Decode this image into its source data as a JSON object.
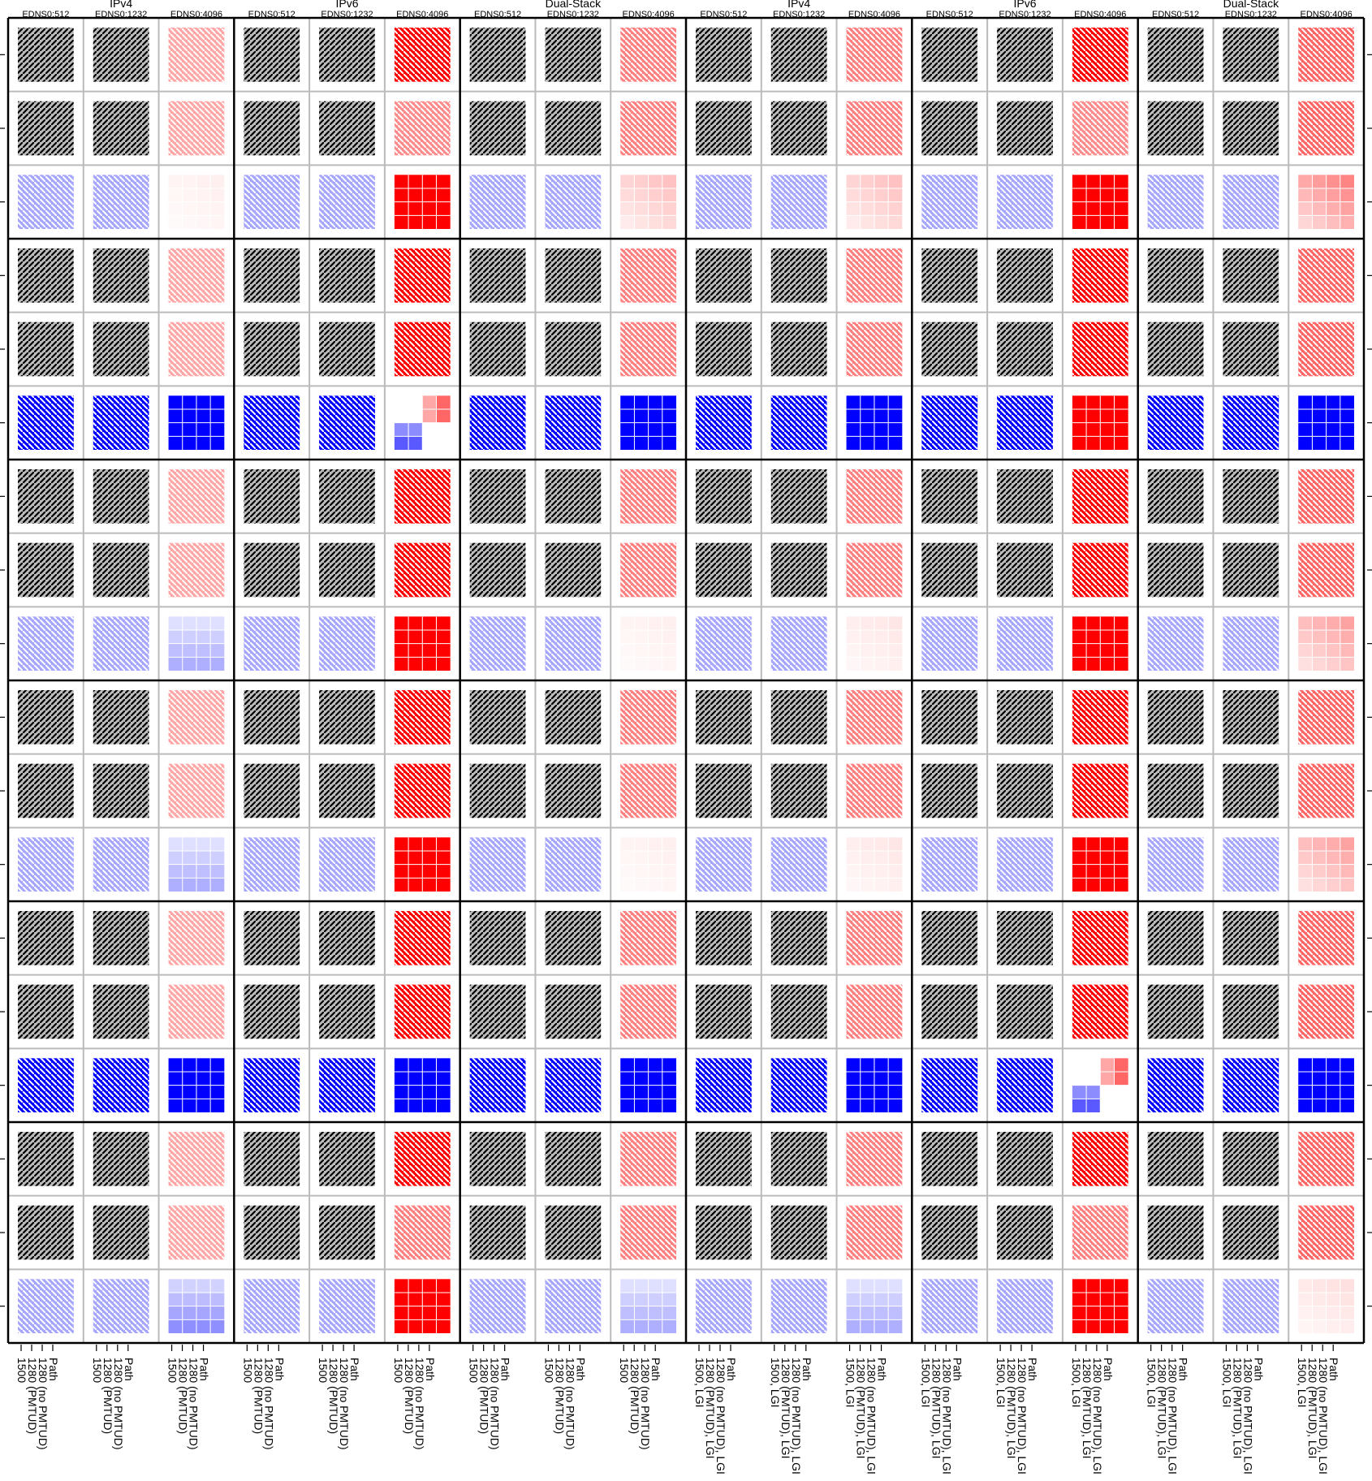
{
  "colors": {
    "failure": "#ff0000",
    "success": "#0000ff",
    "neutral": "#bbbbbb",
    "hatch_dark": "#000000",
    "hatch_light": "#ffffff",
    "cell_border": "#bbbbbb",
    "block_border": "#000000"
  },
  "chart_data": {
    "type": "heatmap",
    "title": "",
    "xlabel": "",
    "ylabel": "",
    "column_groups": [
      "IPv4",
      "IPv6",
      "Dual-Stack",
      "IPv4",
      "IPv6",
      "Dual-Stack"
    ],
    "sub_columns": [
      "EDNS0:512",
      "EDNS0:1232",
      "EDNS0:4096"
    ],
    "path_labels": [
      [
        "1500",
        "1280 (PMTUD)",
        "1280 (no PMTUD)",
        "Path"
      ],
      [
        "1500, LGI",
        "1280 (PMTUD), LGI",
        "1280 (no PMTUD), LGI",
        "Path"
      ]
    ],
    "row_blocks": 6,
    "rows_per_block": 3,
    "mini_grid": [
      4,
      4
    ],
    "cell_kind_legend": {
      "N": "neutral (hatched grey)",
      "Bh": "success, hatched",
      "Rh": "failure, hatched",
      "B": "success, solid",
      "R": "failure, solid",
      "Bgrad": "success fraction varies across mini-grid",
      "Rgrad": "failure fraction varies across mini-grid",
      "mixBR": "mixed success / failure"
    },
    "cells": [
      [
        [
          "N",
          "N",
          "Rh0.35"
        ],
        [
          "N",
          "N",
          "Rh1"
        ],
        [
          "N",
          "N",
          "Rh0.5"
        ],
        [
          "N",
          "N",
          "Rh0.5"
        ],
        [
          "N",
          "N",
          "Rh1"
        ],
        [
          "N",
          "N",
          "Rh0.6"
        ],
        [
          "N",
          "N",
          "Rh0.35"
        ],
        [
          "N",
          "N",
          "Rh0.45"
        ],
        [
          "N",
          "N",
          "Rh0.5"
        ],
        [
          "N",
          "N",
          "Rh0.5"
        ],
        [
          "N",
          "N",
          "Rh0.45"
        ],
        [
          "N",
          "N",
          "Rh0.6"
        ],
        [
          "Bh0.35",
          "Bh0.35",
          "Rgrad0.05"
        ],
        [
          "Bh0.35",
          "Bh0.35",
          "R1"
        ],
        [
          "Bh0.35",
          "Bh0.35",
          "Rgrad0.2"
        ],
        [
          "Bh0.35",
          "Bh0.35",
          "Rgrad0.2"
        ],
        [
          "Bh0.35",
          "Bh0.35",
          "R1"
        ],
        [
          "Bh0.35",
          "Bh0.35",
          "Rgrad0.4"
        ]
      ],
      [
        [
          "N",
          "N",
          "Rh0.35"
        ],
        [
          "N",
          "N",
          "Rh1"
        ],
        [
          "N",
          "N",
          "Rh0.5"
        ],
        [
          "N",
          "N",
          "Rh0.5"
        ],
        [
          "N",
          "N",
          "Rh1"
        ],
        [
          "N",
          "N",
          "Rh0.6"
        ],
        [
          "N",
          "N",
          "Rh0.35"
        ],
        [
          "N",
          "N",
          "Rh1"
        ],
        [
          "N",
          "N",
          "Rh0.5"
        ],
        [
          "N",
          "N",
          "Rh0.5"
        ],
        [
          "N",
          "N",
          "Rh1"
        ],
        [
          "N",
          "N",
          "Rh0.6"
        ],
        [
          "Bh1",
          "Bh1",
          "B1"
        ],
        [
          "Bh1",
          "Bh1",
          "mixBR"
        ],
        [
          "Bh1",
          "Bh1",
          "B1"
        ],
        [
          "Bh1",
          "Bh1",
          "B1"
        ],
        [
          "Bh1",
          "Bh1",
          "R1"
        ],
        [
          "Bh1",
          "Bh1",
          "B1"
        ]
      ],
      [
        [
          "N",
          "N",
          "Rh0.35"
        ],
        [
          "N",
          "N",
          "Rh1"
        ],
        [
          "N",
          "N",
          "Rh0.5"
        ],
        [
          "N",
          "N",
          "Rh0.5"
        ],
        [
          "N",
          "N",
          "Rh1"
        ],
        [
          "N",
          "N",
          "Rh0.6"
        ],
        [
          "N",
          "N",
          "Rh0.35"
        ],
        [
          "N",
          "N",
          "Rh1"
        ],
        [
          "N",
          "N",
          "Rh0.5"
        ],
        [
          "N",
          "N",
          "Rh0.5"
        ],
        [
          "N",
          "N",
          "Rh1"
        ],
        [
          "N",
          "N",
          "Rh0.6"
        ],
        [
          "Bh0.35",
          "Bh0.35",
          "Bgrad0.25"
        ],
        [
          "Bh0.35",
          "Bh0.35",
          "R1"
        ],
        [
          "Bh0.35",
          "Bh0.35",
          "Rgrad0.05"
        ],
        [
          "Bh0.35",
          "Bh0.35",
          "Rgrad0.08"
        ],
        [
          "Bh0.35",
          "Bh0.35",
          "R1"
        ],
        [
          "Bh0.35",
          "Bh0.35",
          "Rgrad0.3"
        ]
      ],
      [
        [
          "N",
          "N",
          "Rh0.35"
        ],
        [
          "N",
          "N",
          "Rh1"
        ],
        [
          "N",
          "N",
          "Rh0.5"
        ],
        [
          "N",
          "N",
          "Rh0.5"
        ],
        [
          "N",
          "N",
          "Rh1"
        ],
        [
          "N",
          "N",
          "Rh0.6"
        ],
        [
          "N",
          "N",
          "Rh0.35"
        ],
        [
          "N",
          "N",
          "Rh1"
        ],
        [
          "N",
          "N",
          "Rh0.5"
        ],
        [
          "N",
          "N",
          "Rh0.5"
        ],
        [
          "N",
          "N",
          "Rh1"
        ],
        [
          "N",
          "N",
          "Rh0.6"
        ],
        [
          "Bh0.35",
          "Bh0.35",
          "Bgrad0.25"
        ],
        [
          "Bh0.35",
          "Bh0.35",
          "R1"
        ],
        [
          "Bh0.35",
          "Bh0.35",
          "Rgrad0.05"
        ],
        [
          "Bh0.35",
          "Bh0.35",
          "Rgrad0.08"
        ],
        [
          "Bh0.35",
          "Bh0.35",
          "R1"
        ],
        [
          "Bh0.35",
          "Bh0.35",
          "Rgrad0.3"
        ]
      ],
      [
        [
          "N",
          "N",
          "Rh0.35"
        ],
        [
          "N",
          "N",
          "Rh1"
        ],
        [
          "N",
          "N",
          "Rh0.5"
        ],
        [
          "N",
          "N",
          "Rh0.5"
        ],
        [
          "N",
          "N",
          "Rh1"
        ],
        [
          "N",
          "N",
          "Rh0.6"
        ],
        [
          "N",
          "N",
          "Rh0.35"
        ],
        [
          "N",
          "N",
          "Rh1"
        ],
        [
          "N",
          "N",
          "Rh0.5"
        ],
        [
          "N",
          "N",
          "Rh0.5"
        ],
        [
          "N",
          "N",
          "Rh1"
        ],
        [
          "N",
          "N",
          "Rh0.6"
        ],
        [
          "Bh1",
          "Bh1",
          "B1"
        ],
        [
          "Bh1",
          "Bh1",
          "B1"
        ],
        [
          "Bh1",
          "Bh1",
          "B1"
        ],
        [
          "Bh1",
          "Bh1",
          "B1"
        ],
        [
          "Bh1",
          "Bh1",
          "mixBR"
        ],
        [
          "Bh1",
          "Bh1",
          "B1"
        ]
      ],
      [
        [
          "N",
          "N",
          "Rh0.35"
        ],
        [
          "N",
          "N",
          "Rh1"
        ],
        [
          "N",
          "N",
          "Rh0.5"
        ],
        [
          "N",
          "N",
          "Rh0.5"
        ],
        [
          "N",
          "N",
          "Rh1"
        ],
        [
          "N",
          "N",
          "Rh0.6"
        ],
        [
          "N",
          "N",
          "Rh0.35"
        ],
        [
          "N",
          "N",
          "Rh0.5"
        ],
        [
          "N",
          "N",
          "Rh0.5"
        ],
        [
          "N",
          "N",
          "Rh0.5"
        ],
        [
          "N",
          "N",
          "Rh0.5"
        ],
        [
          "N",
          "N",
          "Rh0.6"
        ],
        [
          "Bh0.35",
          "Bh0.35",
          "Bgrad0.35"
        ],
        [
          "Bh0.35",
          "Bh0.35",
          "R1"
        ],
        [
          "Bh0.35",
          "Bh0.35",
          "Bgrad0.25"
        ],
        [
          "Bh0.35",
          "Bh0.35",
          "Bgrad0.25"
        ],
        [
          "Bh0.35",
          "Bh0.35",
          "R1"
        ],
        [
          "Bh0.35",
          "Bh0.35",
          "Rgrad0.1"
        ]
      ]
    ]
  }
}
